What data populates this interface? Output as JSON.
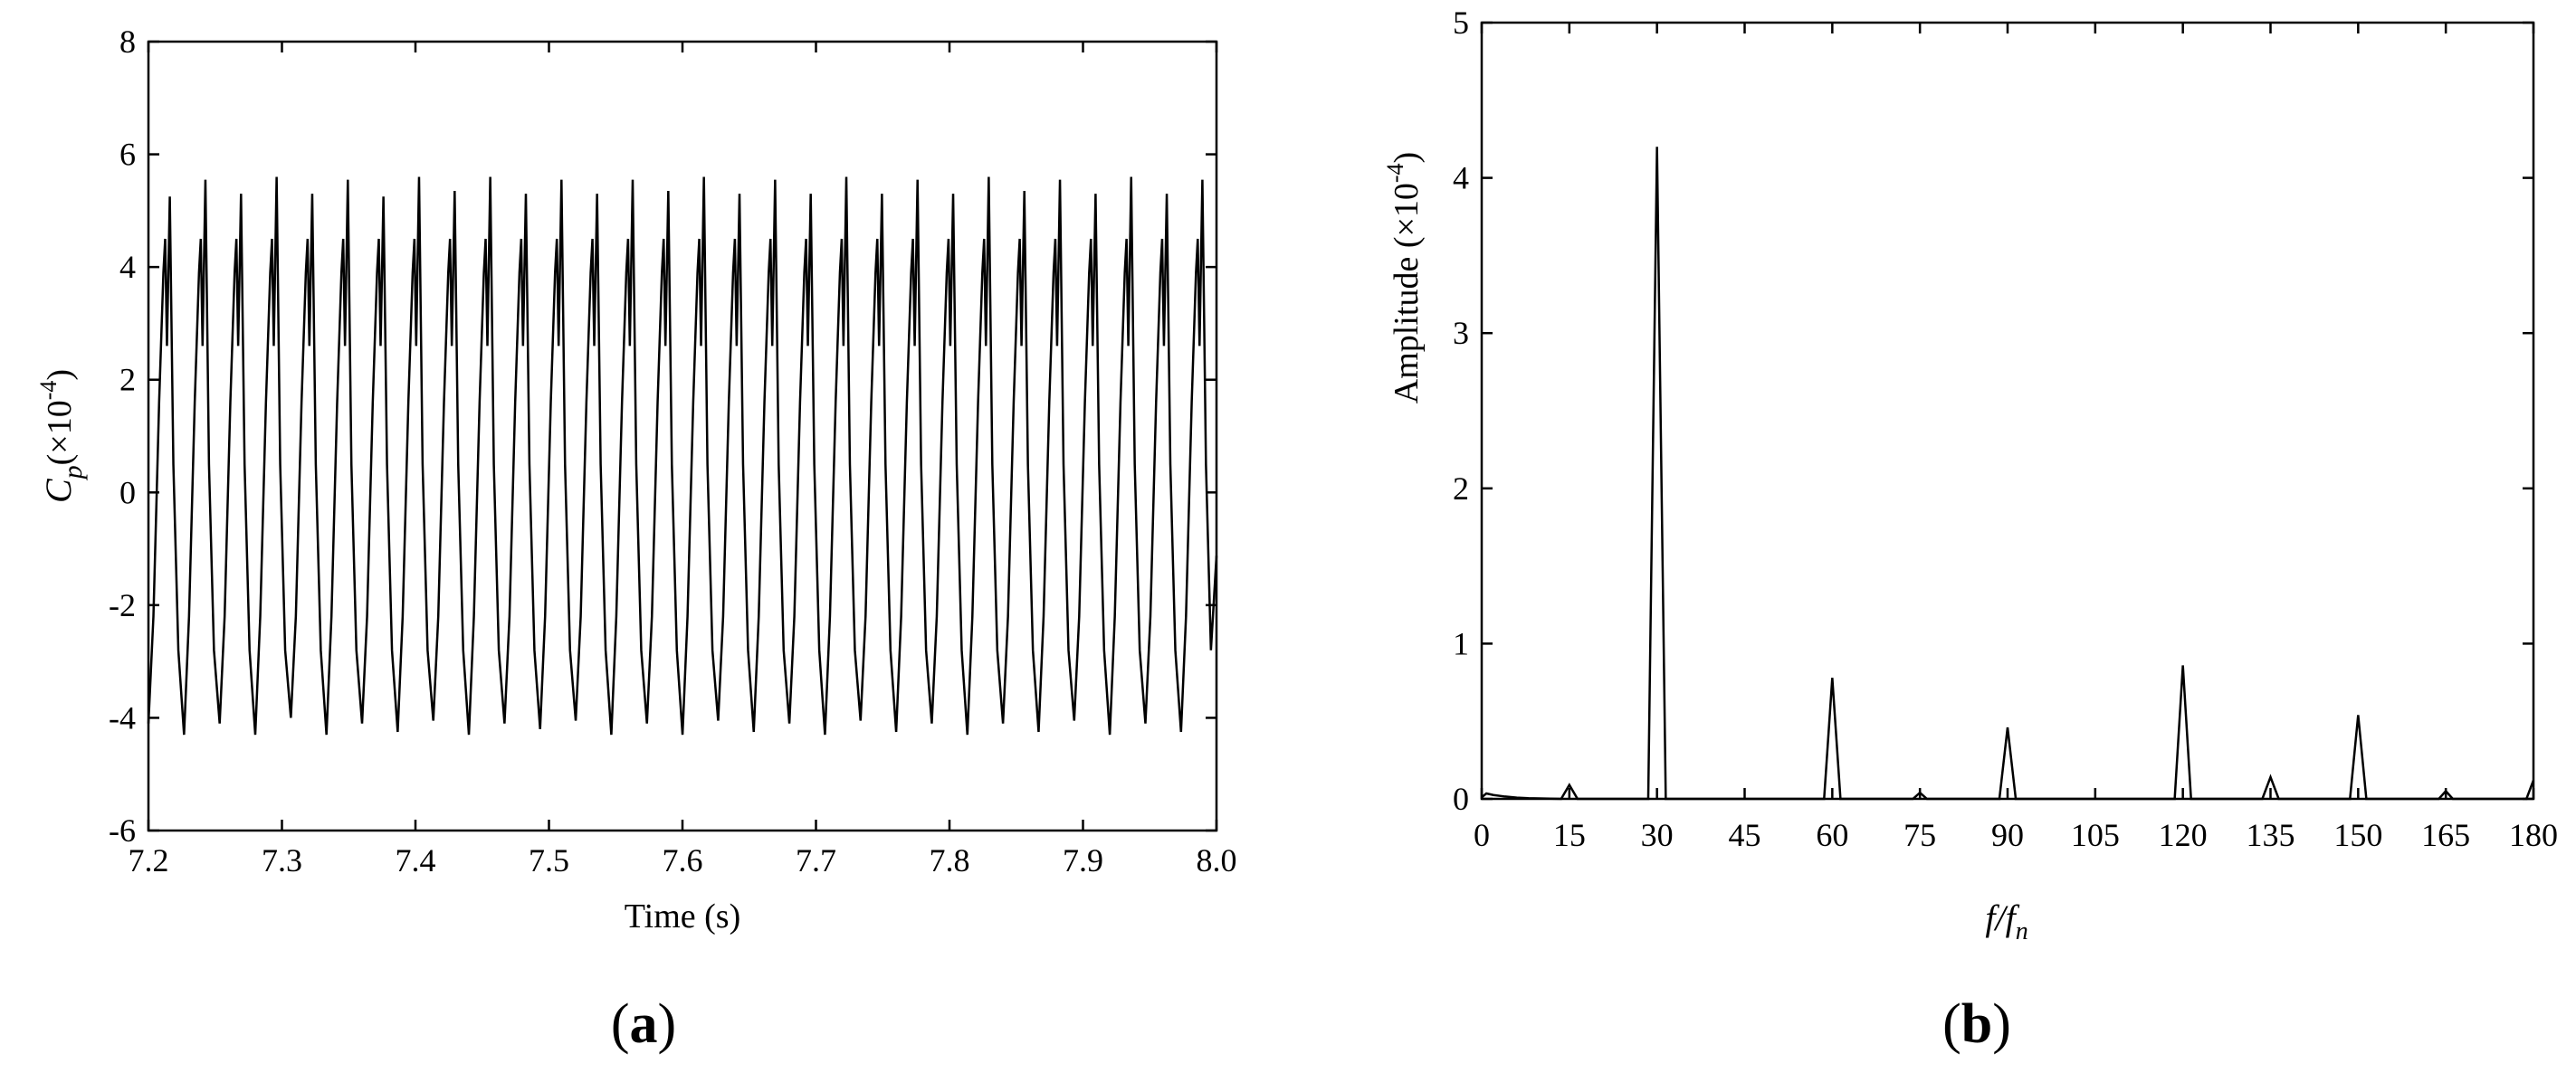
{
  "chart_data": [
    {
      "type": "line",
      "panel_label": [
        "(",
        "a",
        ")"
      ],
      "xlabel": "Time (s)",
      "ylabel": {
        "symbol": "C",
        "subscript": "p",
        "scale_open": "(×10",
        "exponent": "-4",
        "scale_close": ")"
      },
      "xlim": [
        7.2,
        8.0
      ],
      "ylim": [
        -6,
        8
      ],
      "x_ticks": [
        "7.2",
        "7.3",
        "7.4",
        "7.5",
        "7.6",
        "7.7",
        "7.8",
        "7.9",
        "8.0"
      ],
      "y_ticks": [
        "-6",
        "-4",
        "-2",
        "0",
        "2",
        "4",
        "6",
        "8"
      ],
      "grid": false,
      "series": [
        {
          "signal": "periodic",
          "period_s": 0.02667,
          "cycles": 30,
          "x_start": 7.2,
          "x_end": 8.0,
          "cycle_shape": [
            [
              0.0,
              -4.1
            ],
            [
              0.14,
              -2.2
            ],
            [
              0.3,
              1.6
            ],
            [
              0.42,
              3.9
            ],
            [
              0.47,
              4.5
            ],
            [
              0.52,
              2.6
            ],
            [
              0.6,
              5.45
            ],
            [
              0.7,
              0.5
            ],
            [
              0.84,
              -2.8
            ],
            [
              1.0,
              -4.1
            ]
          ],
          "peak_values": [
            5.25,
            5.55,
            5.3,
            5.6,
            5.3,
            5.55,
            5.25,
            5.6,
            5.35,
            5.6,
            5.3,
            5.55,
            5.3,
            5.55,
            5.35,
            5.6,
            5.3,
            5.55,
            5.3,
            5.6,
            5.3,
            5.55,
            5.3,
            5.6,
            5.35,
            5.55,
            5.3,
            5.6,
            5.3,
            5.55
          ],
          "trough_values": [
            -4.1,
            -4.3,
            -4.1,
            -4.3,
            -4.0,
            -4.3,
            -4.1,
            -4.25,
            -4.05,
            -4.3,
            -4.1,
            -4.2,
            -4.05,
            -4.3,
            -4.1,
            -4.3,
            -4.05,
            -4.25,
            -4.1,
            -4.3,
            -4.05,
            -4.25,
            -4.1,
            -4.3,
            -4.1,
            -4.25,
            -4.05,
            -4.3,
            -4.1,
            -4.25
          ]
        }
      ]
    },
    {
      "type": "line",
      "panel_label": [
        "(",
        "b",
        ")"
      ],
      "xlabel": {
        "italic_main": "f",
        "slash": "/",
        "italic_denominator": "f",
        "subscript": "n"
      },
      "ylabel": {
        "text": "Amplitude (×10",
        "exponent": "-4",
        "close": ")"
      },
      "xlim": [
        0,
        180
      ],
      "ylim": [
        0,
        5
      ],
      "x_ticks": [
        "0",
        "15",
        "30",
        "45",
        "60",
        "75",
        "90",
        "105",
        "120",
        "135",
        "150",
        "165",
        "180"
      ],
      "y_ticks": [
        "0",
        "1",
        "2",
        "3",
        "4",
        "5"
      ],
      "grid": false,
      "series": [
        {
          "baseline": 0,
          "low_frequency_noise": [
            [
              0,
              0.01
            ],
            [
              0.8,
              0.035
            ],
            [
              2.0,
              0.025
            ],
            [
              4.0,
              0.015
            ],
            [
              6.0,
              0.008
            ],
            [
              8.0,
              0.004
            ]
          ],
          "peaks": [
            {
              "x": 15,
              "y": 0.09,
              "halfwidth": 1.4
            },
            {
              "x": 30,
              "y": 4.2,
              "halfwidth": 1.5
            },
            {
              "x": 60,
              "y": 0.78,
              "halfwidth": 1.4
            },
            {
              "x": 75,
              "y": 0.04,
              "halfwidth": 1.2
            },
            {
              "x": 90,
              "y": 0.46,
              "halfwidth": 1.4
            },
            {
              "x": 120,
              "y": 0.86,
              "halfwidth": 1.4
            },
            {
              "x": 135,
              "y": 0.14,
              "halfwidth": 1.4
            },
            {
              "x": 150,
              "y": 0.54,
              "halfwidth": 1.4
            },
            {
              "x": 165,
              "y": 0.05,
              "halfwidth": 1.2
            },
            {
              "x": 180,
              "y": 0.12,
              "halfwidth": 1.2
            }
          ]
        }
      ]
    }
  ]
}
